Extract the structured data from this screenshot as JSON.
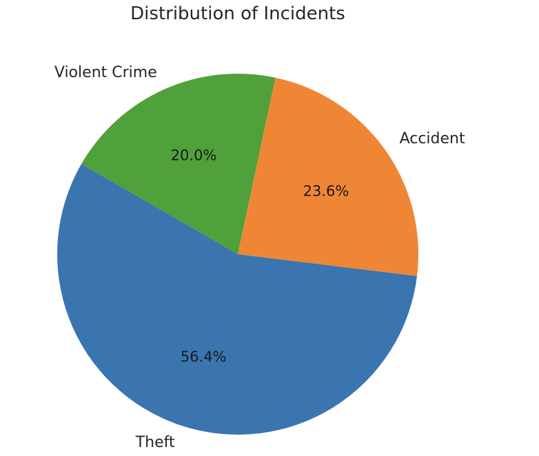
{
  "chart_data": {
    "type": "pie",
    "title": "Distribution of Incidents",
    "slices": [
      {
        "label": "Theft",
        "value": 56.4,
        "pct_label": "56.4%",
        "color": "#3a75b0"
      },
      {
        "label": "Accident",
        "value": 23.6,
        "pct_label": "23.6%",
        "color": "#ef8636"
      },
      {
        "label": "Violent Crime",
        "value": 20.0,
        "pct_label": "20.0%",
        "color": "#50a03b"
      }
    ],
    "start_angle_deg": 150,
    "direction": "counterclockwise",
    "legend": "none"
  }
}
